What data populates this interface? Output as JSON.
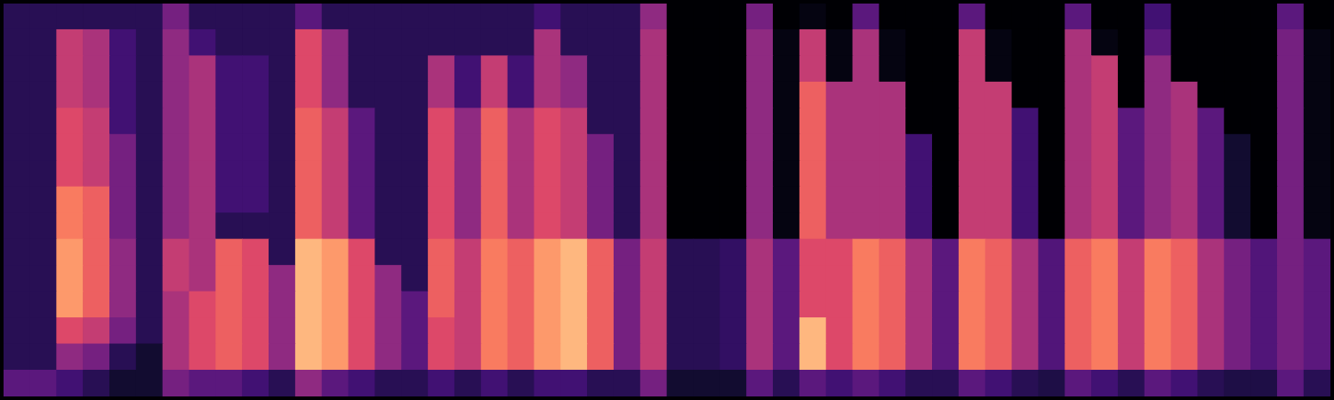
{
  "chart_data": {
    "type": "heatmap",
    "tick_labels": false,
    "grid": false,
    "cells": [
      [
        20,
        20,
        20,
        20,
        20,
        20,
        35,
        20,
        20,
        20,
        20,
        30,
        20,
        20,
        20,
        20,
        20,
        20,
        20,
        20,
        25,
        20,
        20,
        20,
        40,
        8,
        8,
        8,
        35,
        8,
        10,
        8,
        30,
        8,
        8,
        8,
        30,
        8,
        8,
        8,
        30,
        8,
        8,
        25,
        8,
        8,
        8,
        8,
        30,
        8
      ],
      [
        20,
        20,
        50,
        45,
        25,
        20,
        40,
        25,
        20,
        20,
        20,
        55,
        40,
        20,
        20,
        20,
        20,
        20,
        20,
        20,
        45,
        20,
        20,
        20,
        45,
        8,
        8,
        8,
        40,
        10,
        50,
        10,
        45,
        10,
        8,
        8,
        50,
        10,
        8,
        8,
        45,
        10,
        8,
        30,
        8,
        8,
        8,
        8,
        35,
        10
      ],
      [
        20,
        20,
        50,
        45,
        25,
        20,
        40,
        45,
        25,
        25,
        20,
        55,
        40,
        20,
        20,
        20,
        45,
        25,
        50,
        25,
        45,
        40,
        20,
        20,
        45,
        8,
        8,
        8,
        40,
        10,
        50,
        10,
        45,
        10,
        8,
        8,
        50,
        10,
        8,
        8,
        45,
        50,
        8,
        40,
        8,
        8,
        8,
        8,
        35,
        10
      ],
      [
        20,
        20,
        50,
        45,
        25,
        20,
        40,
        45,
        25,
        25,
        20,
        55,
        40,
        20,
        20,
        20,
        45,
        25,
        50,
        25,
        45,
        40,
        20,
        20,
        45,
        8,
        8,
        8,
        40,
        10,
        60,
        45,
        45,
        45,
        8,
        8,
        50,
        50,
        8,
        8,
        45,
        50,
        8,
        40,
        45,
        8,
        8,
        8,
        35,
        10
      ],
      [
        20,
        20,
        55,
        50,
        25,
        20,
        40,
        45,
        25,
        25,
        20,
        60,
        50,
        30,
        20,
        20,
        55,
        40,
        60,
        45,
        55,
        50,
        20,
        20,
        45,
        8,
        8,
        8,
        40,
        10,
        60,
        45,
        45,
        45,
        8,
        8,
        50,
        50,
        25,
        8,
        45,
        50,
        30,
        40,
        45,
        30,
        8,
        8,
        35,
        10
      ],
      [
        20,
        20,
        55,
        50,
        35,
        20,
        40,
        45,
        25,
        25,
        20,
        60,
        50,
        30,
        20,
        20,
        55,
        40,
        60,
        45,
        55,
        50,
        35,
        20,
        45,
        8,
        8,
        8,
        40,
        10,
        60,
        45,
        45,
        45,
        25,
        8,
        50,
        50,
        25,
        8,
        45,
        50,
        30,
        40,
        45,
        30,
        15,
        8,
        35,
        10
      ],
      [
        20,
        20,
        55,
        50,
        35,
        20,
        40,
        45,
        25,
        25,
        20,
        60,
        50,
        30,
        20,
        20,
        55,
        40,
        60,
        45,
        55,
        50,
        35,
        20,
        45,
        8,
        8,
        8,
        40,
        10,
        60,
        45,
        45,
        45,
        25,
        8,
        50,
        50,
        25,
        8,
        45,
        50,
        30,
        40,
        45,
        30,
        15,
        8,
        35,
        10
      ],
      [
        20,
        20,
        65,
        60,
        35,
        20,
        40,
        45,
        25,
        25,
        20,
        60,
        50,
        30,
        20,
        20,
        55,
        40,
        60,
        45,
        55,
        50,
        35,
        20,
        45,
        8,
        8,
        8,
        40,
        10,
        60,
        45,
        45,
        45,
        25,
        8,
        50,
        50,
        25,
        8,
        45,
        50,
        30,
        40,
        45,
        30,
        15,
        8,
        35,
        10
      ],
      [
        20,
        20,
        65,
        60,
        35,
        20,
        40,
        45,
        20,
        20,
        20,
        60,
        50,
        30,
        20,
        20,
        55,
        40,
        60,
        45,
        55,
        50,
        35,
        20,
        45,
        8,
        8,
        8,
        40,
        10,
        60,
        45,
        45,
        45,
        25,
        8,
        50,
        50,
        25,
        8,
        45,
        50,
        30,
        40,
        45,
        30,
        15,
        8,
        35,
        10
      ],
      [
        20,
        20,
        70,
        60,
        40,
        20,
        50,
        45,
        60,
        55,
        20,
        75,
        70,
        55,
        20,
        20,
        60,
        50,
        65,
        60,
        70,
        75,
        60,
        35,
        50,
        20,
        20,
        22,
        45,
        30,
        55,
        55,
        65,
        60,
        45,
        30,
        65,
        60,
        45,
        28,
        60,
        65,
        50,
        65,
        60,
        45,
        35,
        28,
        35,
        30
      ],
      [
        20,
        20,
        70,
        60,
        40,
        20,
        50,
        45,
        60,
        55,
        40,
        75,
        70,
        55,
        40,
        20,
        60,
        50,
        65,
        60,
        70,
        75,
        60,
        35,
        50,
        20,
        20,
        22,
        45,
        30,
        55,
        55,
        65,
        60,
        45,
        30,
        65,
        60,
        45,
        28,
        60,
        65,
        50,
        65,
        60,
        45,
        35,
        28,
        35,
        30
      ],
      [
        20,
        20,
        70,
        60,
        40,
        20,
        45,
        55,
        60,
        55,
        40,
        75,
        70,
        55,
        40,
        30,
        60,
        50,
        65,
        60,
        70,
        75,
        60,
        35,
        50,
        20,
        20,
        22,
        45,
        30,
        55,
        55,
        65,
        60,
        45,
        30,
        65,
        60,
        45,
        28,
        60,
        65,
        50,
        65,
        60,
        45,
        35,
        28,
        35,
        30
      ],
      [
        20,
        20,
        55,
        50,
        35,
        20,
        45,
        55,
        60,
        55,
        40,
        75,
        70,
        55,
        40,
        30,
        55,
        50,
        65,
        60,
        70,
        75,
        60,
        35,
        50,
        20,
        20,
        22,
        45,
        30,
        75,
        55,
        65,
        60,
        45,
        30,
        65,
        60,
        45,
        28,
        60,
        65,
        50,
        65,
        60,
        45,
        35,
        28,
        35,
        30
      ],
      [
        20,
        20,
        40,
        35,
        20,
        15,
        45,
        55,
        60,
        55,
        40,
        75,
        70,
        55,
        40,
        30,
        55,
        50,
        65,
        60,
        70,
        75,
        60,
        35,
        50,
        20,
        20,
        22,
        45,
        30,
        75,
        55,
        65,
        60,
        45,
        30,
        65,
        60,
        45,
        28,
        60,
        65,
        50,
        65,
        60,
        45,
        35,
        28,
        35,
        30
      ],
      [
        30,
        30,
        25,
        20,
        15,
        15,
        35,
        30,
        30,
        25,
        20,
        40,
        30,
        25,
        20,
        20,
        25,
        20,
        25,
        20,
        25,
        25,
        20,
        20,
        35,
        15,
        15,
        15,
        30,
        20,
        30,
        25,
        30,
        25,
        20,
        20,
        30,
        25,
        20,
        18,
        30,
        25,
        20,
        30,
        25,
        20,
        18,
        18,
        30,
        20
      ]
    ]
  }
}
